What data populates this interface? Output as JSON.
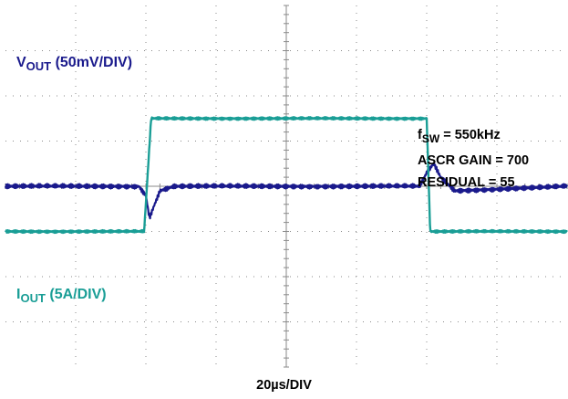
{
  "colors": {
    "vout": "#1a1a8c",
    "iout": "#1a9e96",
    "grid": "#8a8a8a"
  },
  "labels": {
    "vout_name": "V",
    "vout_sub": "OUT",
    "vout_scale": "(50mV/DIV)",
    "iout_name": "I",
    "iout_sub": "OUT",
    "iout_scale": "(5A/DIV)",
    "fsw_name": "f",
    "fsw_sub": "SW",
    "fsw_value": "= 550kHz",
    "ascr_gain": "ASCR GAIN = 700",
    "residual": "RESIDUAL = 55",
    "time_div": "20µs/DIV"
  },
  "chart_data": {
    "type": "line",
    "title": "",
    "xlabel": "20µs/DIV",
    "grid": true,
    "divisions_x": 8,
    "divisions_y": 8,
    "x_unit": "µs",
    "xlim": [
      0,
      160
    ],
    "series": [
      {
        "name": "VOUT (50mV/DIV)",
        "unit": "mV",
        "ylim": [
          -200,
          200
        ],
        "x": [
          0,
          38,
          40,
          41,
          42,
          44,
          48,
          118,
          120,
          122,
          124,
          128,
          160
        ],
        "y": [
          0,
          0,
          -10,
          -35,
          -25,
          -5,
          0,
          0,
          15,
          25,
          10,
          -5,
          0
        ]
      },
      {
        "name": "IOUT (5A/DIV)",
        "unit": "A",
        "ylim": [
          -15,
          25
        ],
        "x": [
          0,
          39.5,
          41.5,
          120,
          121,
          160
        ],
        "y": [
          0,
          0,
          12.5,
          12.5,
          0,
          0
        ]
      }
    ]
  }
}
